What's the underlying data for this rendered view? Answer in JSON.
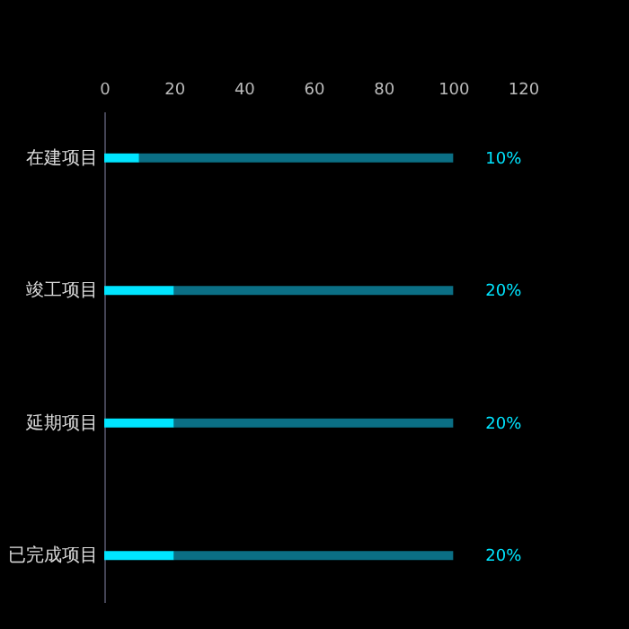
{
  "chart_data": {
    "type": "bar",
    "orientation": "horizontal",
    "stacked": true,
    "categories": [
      "在建项目",
      "竣工项目",
      "延期项目",
      "已完成项目"
    ],
    "series": [
      {
        "color": "#00e5ff",
        "values": [
          10,
          20,
          20,
          20
        ]
      },
      {
        "color": "#0b6f85",
        "values": [
          90,
          80,
          80,
          80
        ]
      }
    ],
    "value_labels": [
      "10%",
      "20%",
      "20%",
      "20%"
    ],
    "xlim": [
      0,
      120
    ],
    "xticks": [
      0,
      20,
      40,
      60,
      80,
      100,
      120
    ],
    "grid": false
  }
}
